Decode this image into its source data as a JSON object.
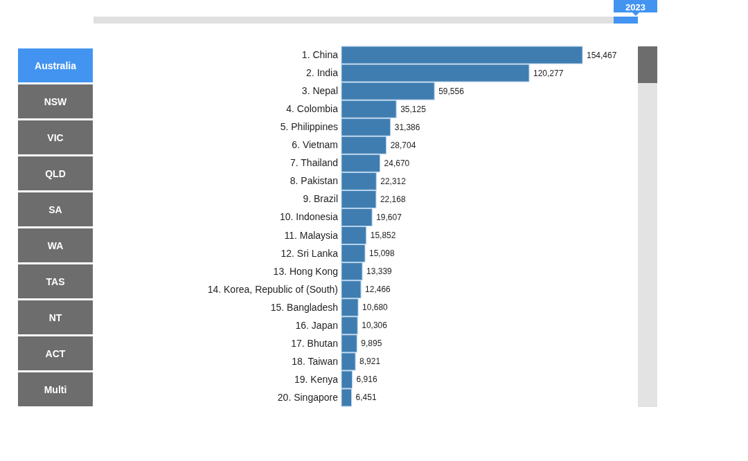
{
  "chart_data": {
    "type": "bar",
    "orientation": "horizontal",
    "categories": [
      "1. China",
      "2. India",
      "3. Nepal",
      "4. Colombia",
      "5. Philippines",
      "6. Vietnam",
      "7. Thailand",
      "8. Pakistan",
      "9. Brazil",
      "10. Indonesia",
      "11. Malaysia",
      "12. Sri Lanka",
      "13. Hong Kong",
      "14. Korea, Republic of (South)",
      "15. Bangladesh",
      "16. Japan",
      "17. Bhutan",
      "18. Taiwan",
      "19. Kenya",
      "20. Singapore"
    ],
    "values": [
      154467,
      120277,
      59556,
      35125,
      31386,
      28704,
      24670,
      22312,
      22168,
      19607,
      15852,
      15098,
      13339,
      12466,
      10680,
      10306,
      9895,
      8921,
      6916,
      6451
    ],
    "value_labels": [
      "154,467",
      "120,277",
      "59,556",
      "35,125",
      "31,386",
      "28,704",
      "24,670",
      "22,312",
      "22,168",
      "19,607",
      "15,852",
      "15,098",
      "13,339",
      "12,466",
      "10,680",
      "10,306",
      "9,895",
      "8,921",
      "6,916",
      "6,451"
    ],
    "color": "#3f7db0",
    "annotations": [
      "Australia",
      "NSW",
      "VIC",
      "QLD",
      "SA",
      "WA",
      "TAS",
      "NT",
      "ACT",
      "Multi",
      "2023"
    ]
  }
}
